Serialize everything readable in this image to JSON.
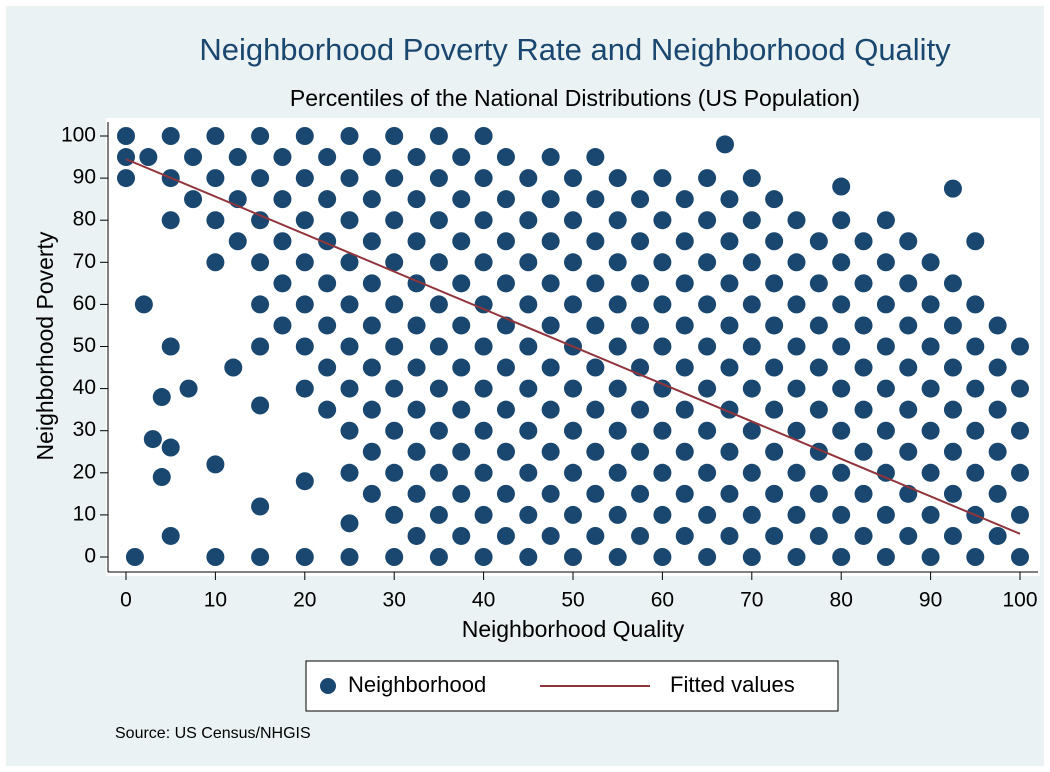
{
  "chart_data": {
    "type": "scatter",
    "title": "Neighborhood Poverty Rate and Neighborhood Quality",
    "subtitle": "Percentiles of the National Distributions (US Population)",
    "x_label": "Neighborhood Quality",
    "y_label": "Neighborhood Poverty",
    "note": "Source:  US Census/NHGIS",
    "xlim": [
      0,
      100
    ],
    "ylim": [
      0,
      100
    ],
    "xticks": [
      0,
      10,
      20,
      30,
      40,
      50,
      60,
      70,
      80,
      90,
      100
    ],
    "yticks": [
      0,
      10,
      20,
      30,
      40,
      50,
      60,
      70,
      80,
      90,
      100
    ],
    "grid": false,
    "series": [
      {
        "name": "Neighborhood",
        "type": "scatter",
        "color": "#1a476f",
        "x": [
          0,
          0,
          0,
          2.5,
          5,
          5,
          5,
          5,
          5,
          5,
          7.5,
          7.5,
          10,
          10,
          10,
          10,
          10,
          10,
          12.5,
          12.5,
          12.5,
          15,
          15,
          15,
          15,
          15,
          15,
          15,
          15,
          15,
          17.5,
          17.5,
          17.5,
          17.5,
          17.5,
          20,
          20,
          20,
          20,
          20,
          20,
          20,
          20,
          20,
          22.5,
          22.5,
          22.5,
          22.5,
          22.5,
          22.5,
          22.5,
          25,
          25,
          25,
          25,
          25,
          25,
          25,
          25,
          25,
          25,
          25,
          27.5,
          27.5,
          27.5,
          27.5,
          27.5,
          27.5,
          27.5,
          27.5,
          27.5,
          30,
          30,
          30,
          30,
          30,
          30,
          30,
          30,
          30,
          30,
          30,
          32.5,
          32.5,
          32.5,
          32.5,
          32.5,
          32.5,
          32.5,
          32.5,
          32.5,
          32.5,
          35,
          35,
          35,
          35,
          35,
          35,
          35,
          35,
          35,
          35,
          35,
          37.5,
          37.5,
          37.5,
          37.5,
          37.5,
          37.5,
          37.5,
          37.5,
          37.5,
          37.5,
          40,
          40,
          40,
          40,
          40,
          40,
          40,
          40,
          40,
          40,
          40,
          42.5,
          42.5,
          42.5,
          42.5,
          42.5,
          42.5,
          42.5,
          42.5,
          42.5,
          42.5,
          45,
          45,
          45,
          45,
          45,
          45,
          45,
          45,
          45,
          45,
          47.5,
          47.5,
          47.5,
          47.5,
          47.5,
          47.5,
          47.5,
          47.5,
          47.5,
          47.5,
          50,
          50,
          50,
          50,
          50,
          50,
          50,
          50,
          50,
          50,
          52.5,
          52.5,
          52.5,
          52.5,
          52.5,
          52.5,
          52.5,
          52.5,
          52.5,
          52.5,
          55,
          55,
          55,
          55,
          55,
          55,
          55,
          55,
          55,
          55,
          57.5,
          57.5,
          57.5,
          57.5,
          57.5,
          57.5,
          57.5,
          57.5,
          57.5,
          60,
          60,
          60,
          60,
          60,
          60,
          60,
          60,
          60,
          60,
          62.5,
          62.5,
          62.5,
          62.5,
          62.5,
          62.5,
          62.5,
          62.5,
          62.5,
          65,
          65,
          65,
          65,
          65,
          65,
          65,
          65,
          65,
          65,
          67.5,
          67.5,
          67.5,
          67.5,
          67.5,
          67.5,
          67.5,
          67.5,
          67.5,
          70,
          70,
          70,
          70,
          70,
          70,
          70,
          70,
          70,
          70,
          72.5,
          72.5,
          72.5,
          72.5,
          72.5,
          72.5,
          72.5,
          72.5,
          72.5,
          75,
          75,
          75,
          75,
          75,
          75,
          75,
          75,
          75,
          77.5,
          77.5,
          77.5,
          77.5,
          77.5,
          77.5,
          77.5,
          77.5,
          80,
          80,
          80,
          80,
          80,
          80,
          80,
          80,
          80,
          80,
          82.5,
          82.5,
          82.5,
          82.5,
          82.5,
          82.5,
          82.5,
          82.5,
          85,
          85,
          85,
          85,
          85,
          85,
          85,
          85,
          85,
          87.5,
          87.5,
          87.5,
          87.5,
          87.5,
          87.5,
          87.5,
          87.5,
          90,
          90,
          90,
          90,
          90,
          90,
          90,
          90,
          92.5,
          92.5,
          92.5,
          92.5,
          92.5,
          92.5,
          92.5,
          95,
          95,
          95,
          95,
          95,
          95,
          95,
          95,
          97.5,
          97.5,
          97.5,
          97.5,
          97.5,
          97.5,
          100,
          100,
          100,
          100,
          100,
          100,
          92.5,
          67,
          3,
          1,
          4,
          4,
          7,
          2,
          12
        ],
        "values": [
          90,
          95,
          100,
          95,
          80,
          90,
          100,
          5,
          26,
          50,
          85,
          95,
          70,
          80,
          90,
          100,
          0,
          22,
          75,
          85,
          95,
          50,
          60,
          70,
          80,
          90,
          100,
          0,
          12,
          36,
          55,
          65,
          75,
          85,
          95,
          40,
          50,
          60,
          70,
          80,
          90,
          100,
          0,
          18,
          35,
          45,
          55,
          65,
          75,
          85,
          95,
          20,
          30,
          40,
          50,
          60,
          70,
          80,
          90,
          100,
          0,
          8,
          15,
          25,
          35,
          45,
          55,
          65,
          75,
          85,
          95,
          0,
          10,
          20,
          30,
          40,
          50,
          60,
          70,
          80,
          90,
          100,
          5,
          15,
          25,
          35,
          45,
          55,
          65,
          75,
          85,
          95,
          0,
          10,
          20,
          30,
          40,
          50,
          60,
          70,
          80,
          90,
          100,
          5,
          15,
          25,
          35,
          45,
          55,
          65,
          75,
          85,
          95,
          0,
          10,
          20,
          30,
          40,
          50,
          60,
          70,
          80,
          90,
          100,
          5,
          15,
          25,
          35,
          45,
          55,
          65,
          75,
          85,
          95,
          0,
          10,
          20,
          30,
          40,
          50,
          60,
          70,
          80,
          90,
          5,
          15,
          25,
          35,
          45,
          55,
          65,
          75,
          85,
          95,
          0,
          10,
          20,
          30,
          40,
          50,
          60,
          70,
          80,
          90,
          5,
          15,
          25,
          35,
          45,
          55,
          65,
          75,
          85,
          95,
          0,
          10,
          20,
          30,
          40,
          50,
          60,
          70,
          80,
          90,
          5,
          15,
          25,
          35,
          45,
          55,
          65,
          75,
          85,
          0,
          10,
          20,
          30,
          40,
          50,
          60,
          70,
          80,
          90,
          5,
          15,
          25,
          35,
          45,
          55,
          65,
          75,
          85,
          0,
          10,
          20,
          30,
          40,
          50,
          60,
          70,
          80,
          90,
          5,
          15,
          25,
          35,
          45,
          55,
          65,
          75,
          85,
          0,
          10,
          20,
          30,
          40,
          50,
          60,
          70,
          80,
          90,
          5,
          15,
          25,
          35,
          45,
          55,
          65,
          75,
          85,
          0,
          10,
          20,
          30,
          40,
          50,
          60,
          70,
          80,
          5,
          15,
          25,
          35,
          45,
          55,
          65,
          75,
          0,
          10,
          20,
          30,
          40,
          50,
          60,
          70,
          80,
          88,
          5,
          15,
          25,
          35,
          45,
          55,
          65,
          75,
          0,
          10,
          20,
          30,
          40,
          50,
          60,
          70,
          80,
          5,
          15,
          25,
          35,
          45,
          55,
          65,
          75,
          0,
          10,
          20,
          30,
          40,
          50,
          60,
          70,
          5,
          15,
          25,
          35,
          45,
          55,
          65,
          0,
          10,
          20,
          30,
          40,
          50,
          60,
          75,
          5,
          15,
          25,
          35,
          45,
          55,
          0,
          10,
          20,
          30,
          40,
          50,
          87.5,
          98,
          28,
          0,
          19,
          38,
          40,
          60,
          45
        ]
      },
      {
        "name": "Fitted values",
        "type": "line",
        "color": "#90353b",
        "x": [
          0,
          100
        ],
        "values": [
          94.5,
          5.5
        ]
      }
    ]
  }
}
